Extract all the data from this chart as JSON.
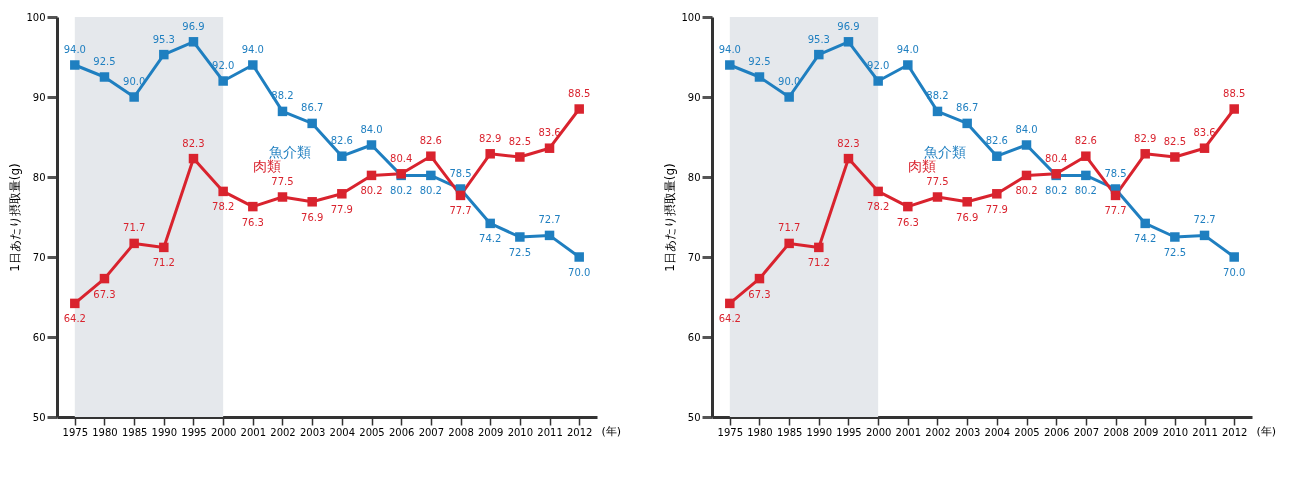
{
  "chart_data": [
    {
      "type": "line",
      "categories": [
        "1975",
        "1980",
        "1985",
        "1990",
        "1995",
        "2000",
        "2001",
        "2002",
        "2003",
        "2004",
        "2005",
        "2006",
        "2007",
        "2008",
        "2009",
        "2010",
        "2011",
        "2012"
      ],
      "series": [
        {
          "name": "魚介類",
          "color": "#1f7fc0",
          "values": [
            94.0,
            92.5,
            90.0,
            95.3,
            96.9,
            92.0,
            94.0,
            88.2,
            86.7,
            82.6,
            84.0,
            80.2,
            80.2,
            78.5,
            74.2,
            72.5,
            72.7,
            70.0
          ],
          "value_labels": [
            "94.0",
            "92.5",
            "90.0",
            "95.3",
            "96.9",
            "92.0",
            "94.0",
            "88.2",
            "86.7",
            "82.6",
            "84.0",
            "80.2",
            "80.2",
            "78.5",
            "74.2",
            "72.5",
            "72.7",
            "70.0"
          ]
        },
        {
          "name": "肉類",
          "color": "#d9232e",
          "values": [
            64.2,
            67.3,
            71.7,
            71.2,
            82.3,
            78.2,
            76.3,
            77.5,
            76.9,
            77.9,
            80.2,
            80.4,
            82.6,
            77.7,
            82.9,
            82.5,
            83.6,
            88.5
          ],
          "value_labels": [
            "64.2",
            "67.3",
            "71.7",
            "71.2",
            "82.3",
            "78.2",
            "76.3",
            "77.5",
            "76.9",
            "77.9",
            "80.2",
            "80.4",
            "82.6",
            "77.7",
            "82.9",
            "82.5",
            "83.6",
            "88.5"
          ]
        }
      ],
      "ylim": [
        50,
        100
      ],
      "yticks": [
        50,
        60,
        70,
        80,
        90,
        100
      ],
      "xlabel": "(年)",
      "ylabel": "1日あたり摂取量(g)",
      "bands": [
        {
          "axis": "x",
          "from": "1975",
          "to": "2000",
          "color": "#e5e8ec"
        }
      ],
      "marker": "square",
      "grid": false
    },
    {
      "type": "line",
      "categories": [
        "1975",
        "1980",
        "1985",
        "1990",
        "1995",
        "2000",
        "2001",
        "2002",
        "2003",
        "2004",
        "2005",
        "2006",
        "2007",
        "2008",
        "2009",
        "2010",
        "2011",
        "2012"
      ],
      "series": [
        {
          "name": "魚介類",
          "color": "#1f7fc0",
          "values": [
            94.0,
            92.5,
            90.0,
            95.3,
            96.9,
            92.0,
            94.0,
            88.2,
            86.7,
            82.6,
            84.0,
            80.2,
            80.2,
            78.5,
            74.2,
            72.5,
            72.7,
            70.0
          ],
          "value_labels": [
            "94.0",
            "92.5",
            "90.0",
            "95.3",
            "96.9",
            "92.0",
            "94.0",
            "88.2",
            "86.7",
            "82.6",
            "84.0",
            "80.2",
            "80.2",
            "78.5",
            "74.2",
            "72.5",
            "72.7",
            "70.0"
          ]
        },
        {
          "name": "肉類",
          "color": "#d9232e",
          "values": [
            64.2,
            67.3,
            71.7,
            71.2,
            82.3,
            78.2,
            76.3,
            77.5,
            76.9,
            77.9,
            80.2,
            80.4,
            82.6,
            77.7,
            82.9,
            82.5,
            83.6,
            88.5
          ],
          "value_labels": [
            "64.2",
            "67.3",
            "71.7",
            "71.2",
            "82.3",
            "78.2",
            "76.3",
            "77.5",
            "76.9",
            "77.9",
            "80.2",
            "80.4",
            "82.6",
            "77.7",
            "82.9",
            "82.5",
            "83.6",
            "88.5"
          ]
        }
      ],
      "ylim": [
        50,
        100
      ],
      "yticks": [
        50,
        60,
        70,
        80,
        90,
        100
      ],
      "xlabel": "(年)",
      "ylabel": "1日あたり摂取量(g)",
      "bands": [
        {
          "axis": "x",
          "from": "1975",
          "to": "2000",
          "color": "#e5e8ec"
        }
      ],
      "marker": "square",
      "grid": false
    }
  ]
}
